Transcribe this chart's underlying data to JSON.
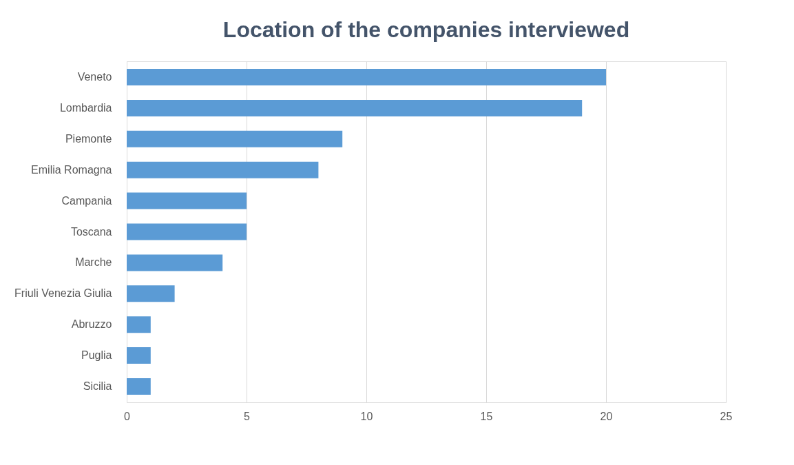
{
  "chart_data": {
    "type": "bar",
    "orientation": "horizontal",
    "title": "Location of the companies interviewed",
    "categories": [
      "Veneto",
      "Lombardia",
      "Piemonte",
      "Emilia Romagna",
      "Campania",
      "Toscana",
      "Marche",
      "Friuli Venezia Giulia",
      "Abruzzo",
      "Puglia",
      "Sicilia"
    ],
    "values": [
      20,
      19,
      9,
      8,
      5,
      5,
      4,
      2,
      1,
      1,
      1
    ],
    "color": "#5b9bd5",
    "xlim": [
      0,
      25
    ],
    "xticks": [
      0,
      5,
      10,
      15,
      20,
      25
    ],
    "grid": "x"
  }
}
